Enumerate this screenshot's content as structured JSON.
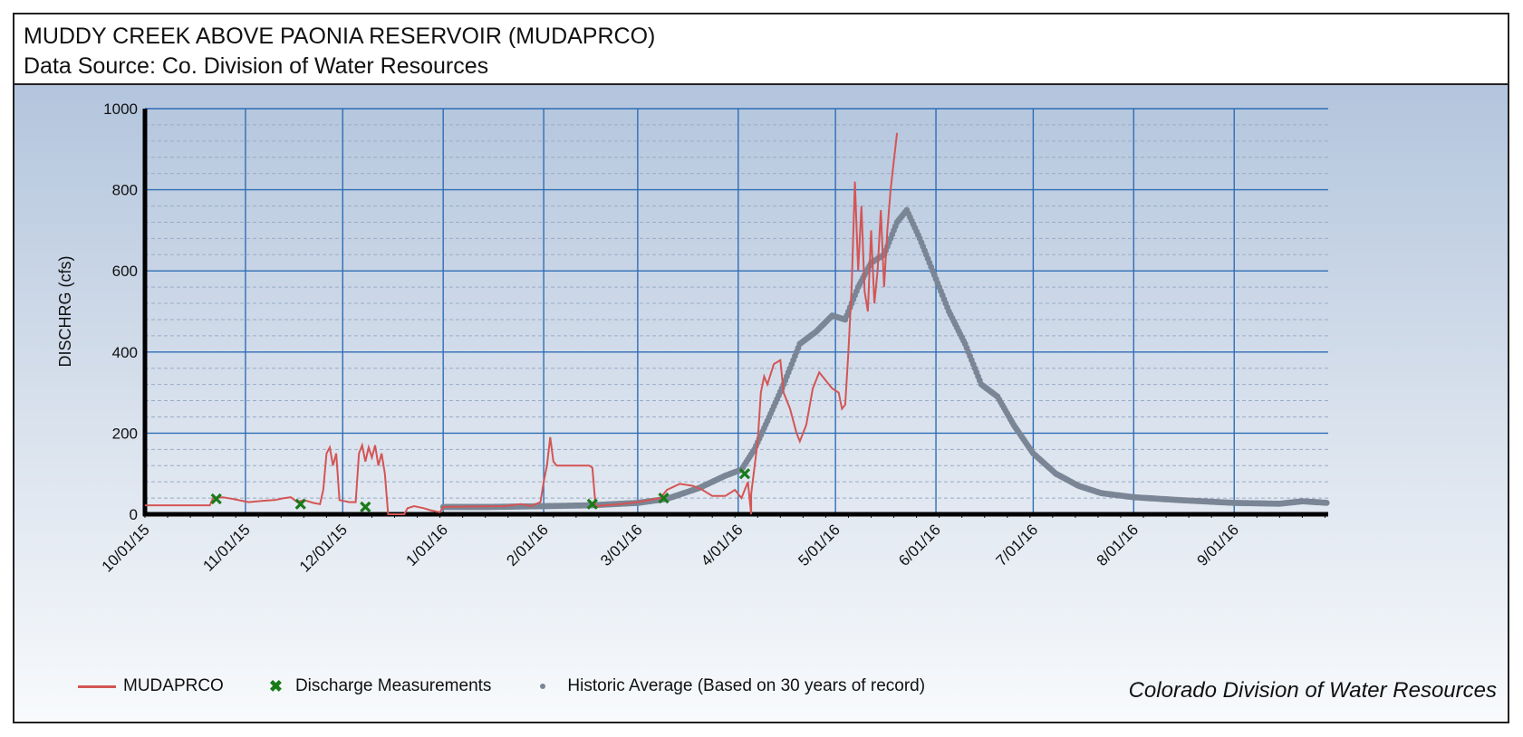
{
  "header": {
    "title": "MUDDY CREEK ABOVE PAONIA RESERVOIR (MUDAPRCO)",
    "subtitle": "Data Source: Co. Division of Water Resources"
  },
  "legend": {
    "series_label": "MUDAPRCO",
    "measurements_label": "Discharge Measurements",
    "historic_label": "Historic Average (Based on 30 years of record)"
  },
  "credit": "Colorado Division of Water Resources",
  "colors": {
    "flow": "#d45555",
    "measurements": "#1a7a1a",
    "historic": "#7a8696",
    "grid_major": "#2f6db5",
    "grid_minor": "#9aacc6"
  },
  "chart_data": {
    "type": "line",
    "title": "MUDDY CREEK ABOVE PAONIA RESERVOIR (MUDAPRCO)",
    "ylabel": "DISCHRG (cfs)",
    "xlabel": "",
    "ylim": [
      0,
      1000
    ],
    "yticks": [
      0,
      200,
      400,
      600,
      800,
      1000
    ],
    "xlim": [
      "2015-10-01",
      "2016-09-30"
    ],
    "xtick_labels": [
      "10/01/15",
      "11/01/15",
      "12/01/15",
      "1/01/16",
      "2/01/16",
      "3/01/16",
      "4/01/16",
      "5/01/16",
      "6/01/16",
      "7/01/16",
      "8/01/16",
      "9/01/16"
    ],
    "xtick_dates": [
      "2015-10-01",
      "2015-11-01",
      "2015-12-01",
      "2016-01-01",
      "2016-02-01",
      "2016-03-01",
      "2016-04-01",
      "2016-05-01",
      "2016-06-01",
      "2016-07-01",
      "2016-08-01",
      "2016-09-01"
    ],
    "grid": true,
    "legend_position": "bottom",
    "series": [
      {
        "name": "MUDAPRCO",
        "style": "line",
        "points": [
          [
            "2015-10-01",
            22
          ],
          [
            "2015-10-15",
            22
          ],
          [
            "2015-10-21",
            22
          ],
          [
            "2015-10-22",
            40
          ],
          [
            "2015-10-25",
            42
          ],
          [
            "2015-10-28",
            38
          ],
          [
            "2015-11-02",
            30
          ],
          [
            "2015-11-06",
            33
          ],
          [
            "2015-11-10",
            35
          ],
          [
            "2015-11-13",
            40
          ],
          [
            "2015-11-15",
            42
          ],
          [
            "2015-11-17",
            30
          ],
          [
            "2015-11-19",
            35
          ],
          [
            "2015-11-22",
            28
          ],
          [
            "2015-11-24",
            25
          ],
          [
            "2015-11-25",
            60
          ],
          [
            "2015-11-26",
            150
          ],
          [
            "2015-11-27",
            165
          ],
          [
            "2015-11-28",
            120
          ],
          [
            "2015-11-29",
            150
          ],
          [
            "2015-11-30",
            35
          ],
          [
            "2015-12-03",
            30
          ],
          [
            "2015-12-05",
            30
          ],
          [
            "2015-12-06",
            150
          ],
          [
            "2015-12-07",
            170
          ],
          [
            "2015-12-08",
            130
          ],
          [
            "2015-12-09",
            165
          ],
          [
            "2015-12-10",
            140
          ],
          [
            "2015-12-11",
            170
          ],
          [
            "2015-12-12",
            120
          ],
          [
            "2015-12-13",
            150
          ],
          [
            "2015-12-14",
            100
          ],
          [
            "2015-12-15",
            0
          ],
          [
            "2015-12-20",
            0
          ],
          [
            "2015-12-21",
            15
          ],
          [
            "2015-12-23",
            20
          ],
          [
            "2015-12-26",
            15
          ],
          [
            "2015-12-28",
            10
          ],
          [
            "2015-12-31",
            5
          ],
          [
            "2016-01-01",
            18
          ],
          [
            "2016-01-20",
            20
          ],
          [
            "2016-01-25",
            25
          ],
          [
            "2016-01-28",
            20
          ],
          [
            "2016-01-31",
            30
          ],
          [
            "2016-02-01",
            80
          ],
          [
            "2016-02-02",
            120
          ],
          [
            "2016-02-03",
            190
          ],
          [
            "2016-02-04",
            130
          ],
          [
            "2016-02-05",
            120
          ],
          [
            "2016-02-15",
            120
          ],
          [
            "2016-02-16",
            115
          ],
          [
            "2016-02-17",
            20
          ],
          [
            "2016-02-25",
            25
          ],
          [
            "2016-03-01",
            30
          ],
          [
            "2016-03-08",
            40
          ],
          [
            "2016-03-10",
            60
          ],
          [
            "2016-03-14",
            75
          ],
          [
            "2016-03-18",
            70
          ],
          [
            "2016-03-21",
            60
          ],
          [
            "2016-03-24",
            45
          ],
          [
            "2016-03-28",
            45
          ],
          [
            "2016-03-31",
            60
          ],
          [
            "2016-04-02",
            40
          ],
          [
            "2016-04-04",
            80
          ],
          [
            "2016-04-05",
            0
          ],
          [
            "2016-04-05",
            50
          ],
          [
            "2016-04-07",
            180
          ],
          [
            "2016-04-08",
            300
          ],
          [
            "2016-04-09",
            340
          ],
          [
            "2016-04-10",
            320
          ],
          [
            "2016-04-12",
            370
          ],
          [
            "2016-04-14",
            380
          ],
          [
            "2016-04-15",
            300
          ],
          [
            "2016-04-17",
            260
          ],
          [
            "2016-04-19",
            200
          ],
          [
            "2016-04-20",
            180
          ],
          [
            "2016-04-22",
            220
          ],
          [
            "2016-04-24",
            310
          ],
          [
            "2016-04-26",
            350
          ],
          [
            "2016-04-28",
            330
          ],
          [
            "2016-04-30",
            310
          ],
          [
            "2016-05-02",
            300
          ],
          [
            "2016-05-03",
            260
          ],
          [
            "2016-05-04",
            270
          ],
          [
            "2016-05-05",
            400
          ],
          [
            "2016-05-06",
            560
          ],
          [
            "2016-05-07",
            820
          ],
          [
            "2016-05-08",
            600
          ],
          [
            "2016-05-09",
            760
          ],
          [
            "2016-05-10",
            550
          ],
          [
            "2016-05-11",
            500
          ],
          [
            "2016-05-12",
            700
          ],
          [
            "2016-05-13",
            520
          ],
          [
            "2016-05-14",
            600
          ],
          [
            "2016-05-15",
            750
          ],
          [
            "2016-05-16",
            560
          ],
          [
            "2016-05-17",
            700
          ],
          [
            "2016-05-18",
            800
          ],
          [
            "2016-05-19",
            870
          ],
          [
            "2016-05-20",
            940
          ]
        ]
      },
      {
        "name": "Discharge Measurements",
        "style": "marker",
        "points": [
          [
            "2015-10-23",
            38
          ],
          [
            "2015-11-18",
            25
          ],
          [
            "2015-12-08",
            18
          ],
          [
            "2016-02-16",
            25
          ],
          [
            "2016-03-09",
            40
          ],
          [
            "2016-04-03",
            100
          ]
        ]
      },
      {
        "name": "Historic Average (Based on 30 years of record)",
        "style": "dots",
        "points": [
          [
            "2016-01-01",
            18
          ],
          [
            "2016-01-15",
            18
          ],
          [
            "2016-02-01",
            20
          ],
          [
            "2016-02-15",
            22
          ],
          [
            "2016-03-01",
            28
          ],
          [
            "2016-03-10",
            38
          ],
          [
            "2016-03-20",
            65
          ],
          [
            "2016-03-28",
            95
          ],
          [
            "2016-04-02",
            110
          ],
          [
            "2016-04-06",
            160
          ],
          [
            "2016-04-10",
            230
          ],
          [
            "2016-04-15",
            320
          ],
          [
            "2016-04-20",
            420
          ],
          [
            "2016-04-25",
            450
          ],
          [
            "2016-04-30",
            490
          ],
          [
            "2016-05-04",
            480
          ],
          [
            "2016-05-08",
            560
          ],
          [
            "2016-05-12",
            620
          ],
          [
            "2016-05-16",
            640
          ],
          [
            "2016-05-20",
            720
          ],
          [
            "2016-05-23",
            750
          ],
          [
            "2016-05-27",
            680
          ],
          [
            "2016-05-31",
            600
          ],
          [
            "2016-06-05",
            500
          ],
          [
            "2016-06-10",
            420
          ],
          [
            "2016-06-15",
            320
          ],
          [
            "2016-06-20",
            290
          ],
          [
            "2016-06-25",
            220
          ],
          [
            "2016-07-01",
            150
          ],
          [
            "2016-07-08",
            100
          ],
          [
            "2016-07-15",
            70
          ],
          [
            "2016-07-22",
            52
          ],
          [
            "2016-08-01",
            42
          ],
          [
            "2016-08-15",
            35
          ],
          [
            "2016-09-01",
            28
          ],
          [
            "2016-09-15",
            26
          ],
          [
            "2016-09-22",
            32
          ],
          [
            "2016-09-30",
            28
          ]
        ]
      }
    ]
  }
}
